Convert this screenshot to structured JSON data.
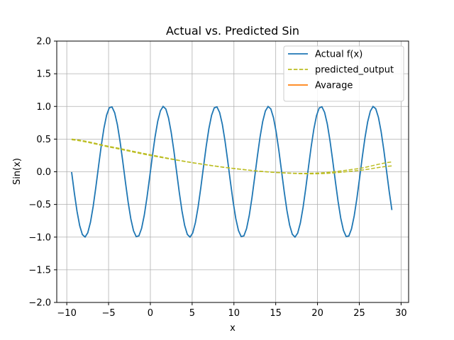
{
  "chart_data": {
    "type": "line",
    "title": "Actual vs. Predicted Sin",
    "xlabel": "x",
    "ylabel": "Sin(x)",
    "xlim": [
      -11.2,
      30.9
    ],
    "ylim": [
      -2.0,
      2.0
    ],
    "xticks": [
      -10,
      -5,
      0,
      5,
      10,
      15,
      20,
      25,
      30
    ],
    "yticks": [
      -2.0,
      -1.5,
      -1.0,
      -0.5,
      0.0,
      0.5,
      1.0,
      1.5,
      2.0
    ],
    "ytick_labels": [
      "−2.0",
      "−1.5",
      "−1.0",
      "−0.5",
      "0.0",
      "0.5",
      "1.0",
      "1.5",
      "2.0"
    ],
    "xtick_labels": [
      "−10",
      "−5",
      "0",
      "5",
      "10",
      "15",
      "20",
      "25",
      "30"
    ],
    "grid": true,
    "legend_position": "top-right",
    "series": [
      {
        "name": "Actual f(x)",
        "style": "solid",
        "color": "#1f77b4",
        "function": "sin",
        "x_range": [
          -9.42,
          28.9
        ],
        "samples": 120
      },
      {
        "name": "predicted_output",
        "style": "dashed",
        "color": "#bcbd22",
        "x": [
          -9.42,
          -5,
          0,
          5,
          10,
          15,
          20,
          25,
          28.9
        ],
        "y": [
          0.5,
          0.39,
          0.26,
          0.14,
          0.05,
          -0.01,
          -0.02,
          0.05,
          0.15
        ]
      },
      {
        "name": "",
        "style": "dashed",
        "color": "#bcbd22",
        "x": [
          -9.42,
          -5,
          0,
          5,
          10,
          15,
          20,
          25,
          28.9
        ],
        "y": [
          0.49,
          0.38,
          0.25,
          0.14,
          0.05,
          -0.01,
          -0.03,
          0.02,
          0.09
        ]
      },
      {
        "name": "Avarage",
        "style": "solid",
        "color": "#ff7f0e",
        "x": [],
        "y": []
      }
    ]
  }
}
